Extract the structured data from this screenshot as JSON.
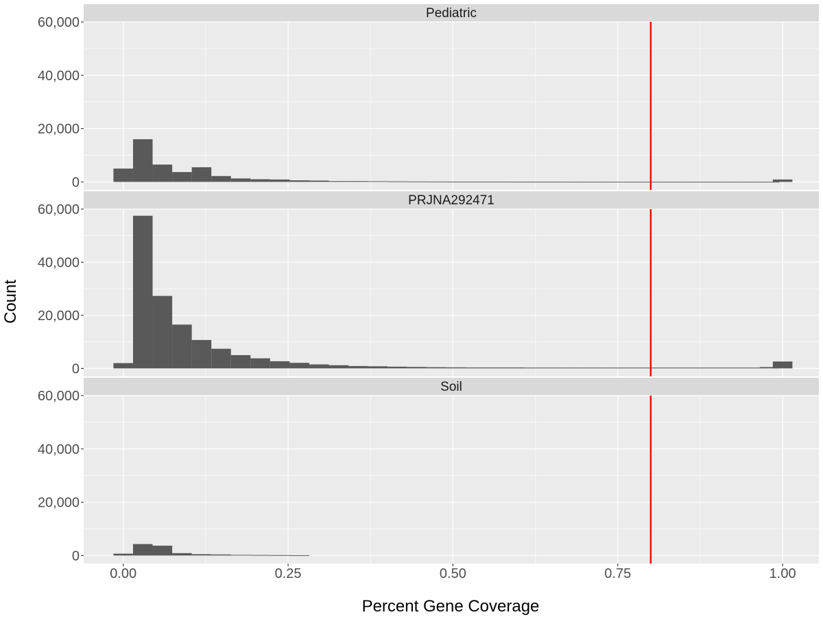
{
  "chart_data": {
    "type": "bar",
    "xlabel": "Percent Gene Coverage",
    "ylabel": "Count",
    "xlim": [
      -0.06,
      1.055
    ],
    "ylim": [
      -3000,
      60000
    ],
    "x_ticks": [
      0.0,
      0.25,
      0.5,
      0.75,
      1.0
    ],
    "x_tick_labels": [
      "0.00",
      "0.25",
      "0.50",
      "0.75",
      "1.00"
    ],
    "y_ticks": [
      0,
      20000,
      40000,
      60000
    ],
    "y_tick_labels": [
      "0",
      "20,000",
      "40,000",
      "60,000"
    ],
    "bin_width": 0.0297,
    "bin_centers": [
      0.0,
      0.0297,
      0.0594,
      0.0891,
      0.1188,
      0.1485,
      0.1782,
      0.2079,
      0.2376,
      0.2673,
      0.297,
      0.3267,
      0.3564,
      0.3861,
      0.4158,
      0.4455,
      0.4752,
      0.5049,
      0.5346,
      0.5643,
      0.594,
      0.6237,
      0.6534,
      0.6831,
      0.7128,
      0.7425,
      0.7722,
      0.8019,
      0.8316,
      0.8613,
      0.891,
      0.9207,
      0.9504,
      0.9801,
      1.0
    ],
    "threshold": 0.8,
    "grid": true,
    "bar_color": "#595959",
    "threshold_color": "#ff0000",
    "panel_bg": "#ebebeb",
    "strip_bg": "#d9d9d9",
    "gridline_color": "#ffffff",
    "panels": [
      {
        "name": "Pediatric",
        "values": [
          5000,
          16000,
          6500,
          3700,
          5500,
          2200,
          1300,
          1000,
          900,
          600,
          500,
          300,
          300,
          250,
          200,
          150,
          120,
          100,
          100,
          100,
          80,
          80,
          80,
          70,
          70,
          70,
          60,
          60,
          60,
          60,
          60,
          60,
          60,
          60,
          900
        ]
      },
      {
        "name": "PRJNA292471",
        "values": [
          2000,
          57500,
          27300,
          16500,
          10700,
          7400,
          5000,
          3800,
          2700,
          2100,
          1500,
          1200,
          900,
          800,
          650,
          550,
          450,
          400,
          350,
          350,
          350,
          300,
          300,
          300,
          300,
          300,
          300,
          300,
          300,
          300,
          300,
          300,
          300,
          500,
          2600
        ]
      },
      {
        "name": "Soil",
        "values": [
          700,
          4300,
          3700,
          900,
          500,
          400,
          250,
          200,
          150,
          100,
          0,
          0,
          0,
          0,
          0,
          0,
          0,
          0,
          0,
          0,
          0,
          0,
          0,
          0,
          0,
          0,
          0,
          0,
          0,
          0,
          0,
          0,
          0,
          0,
          0
        ]
      }
    ]
  }
}
